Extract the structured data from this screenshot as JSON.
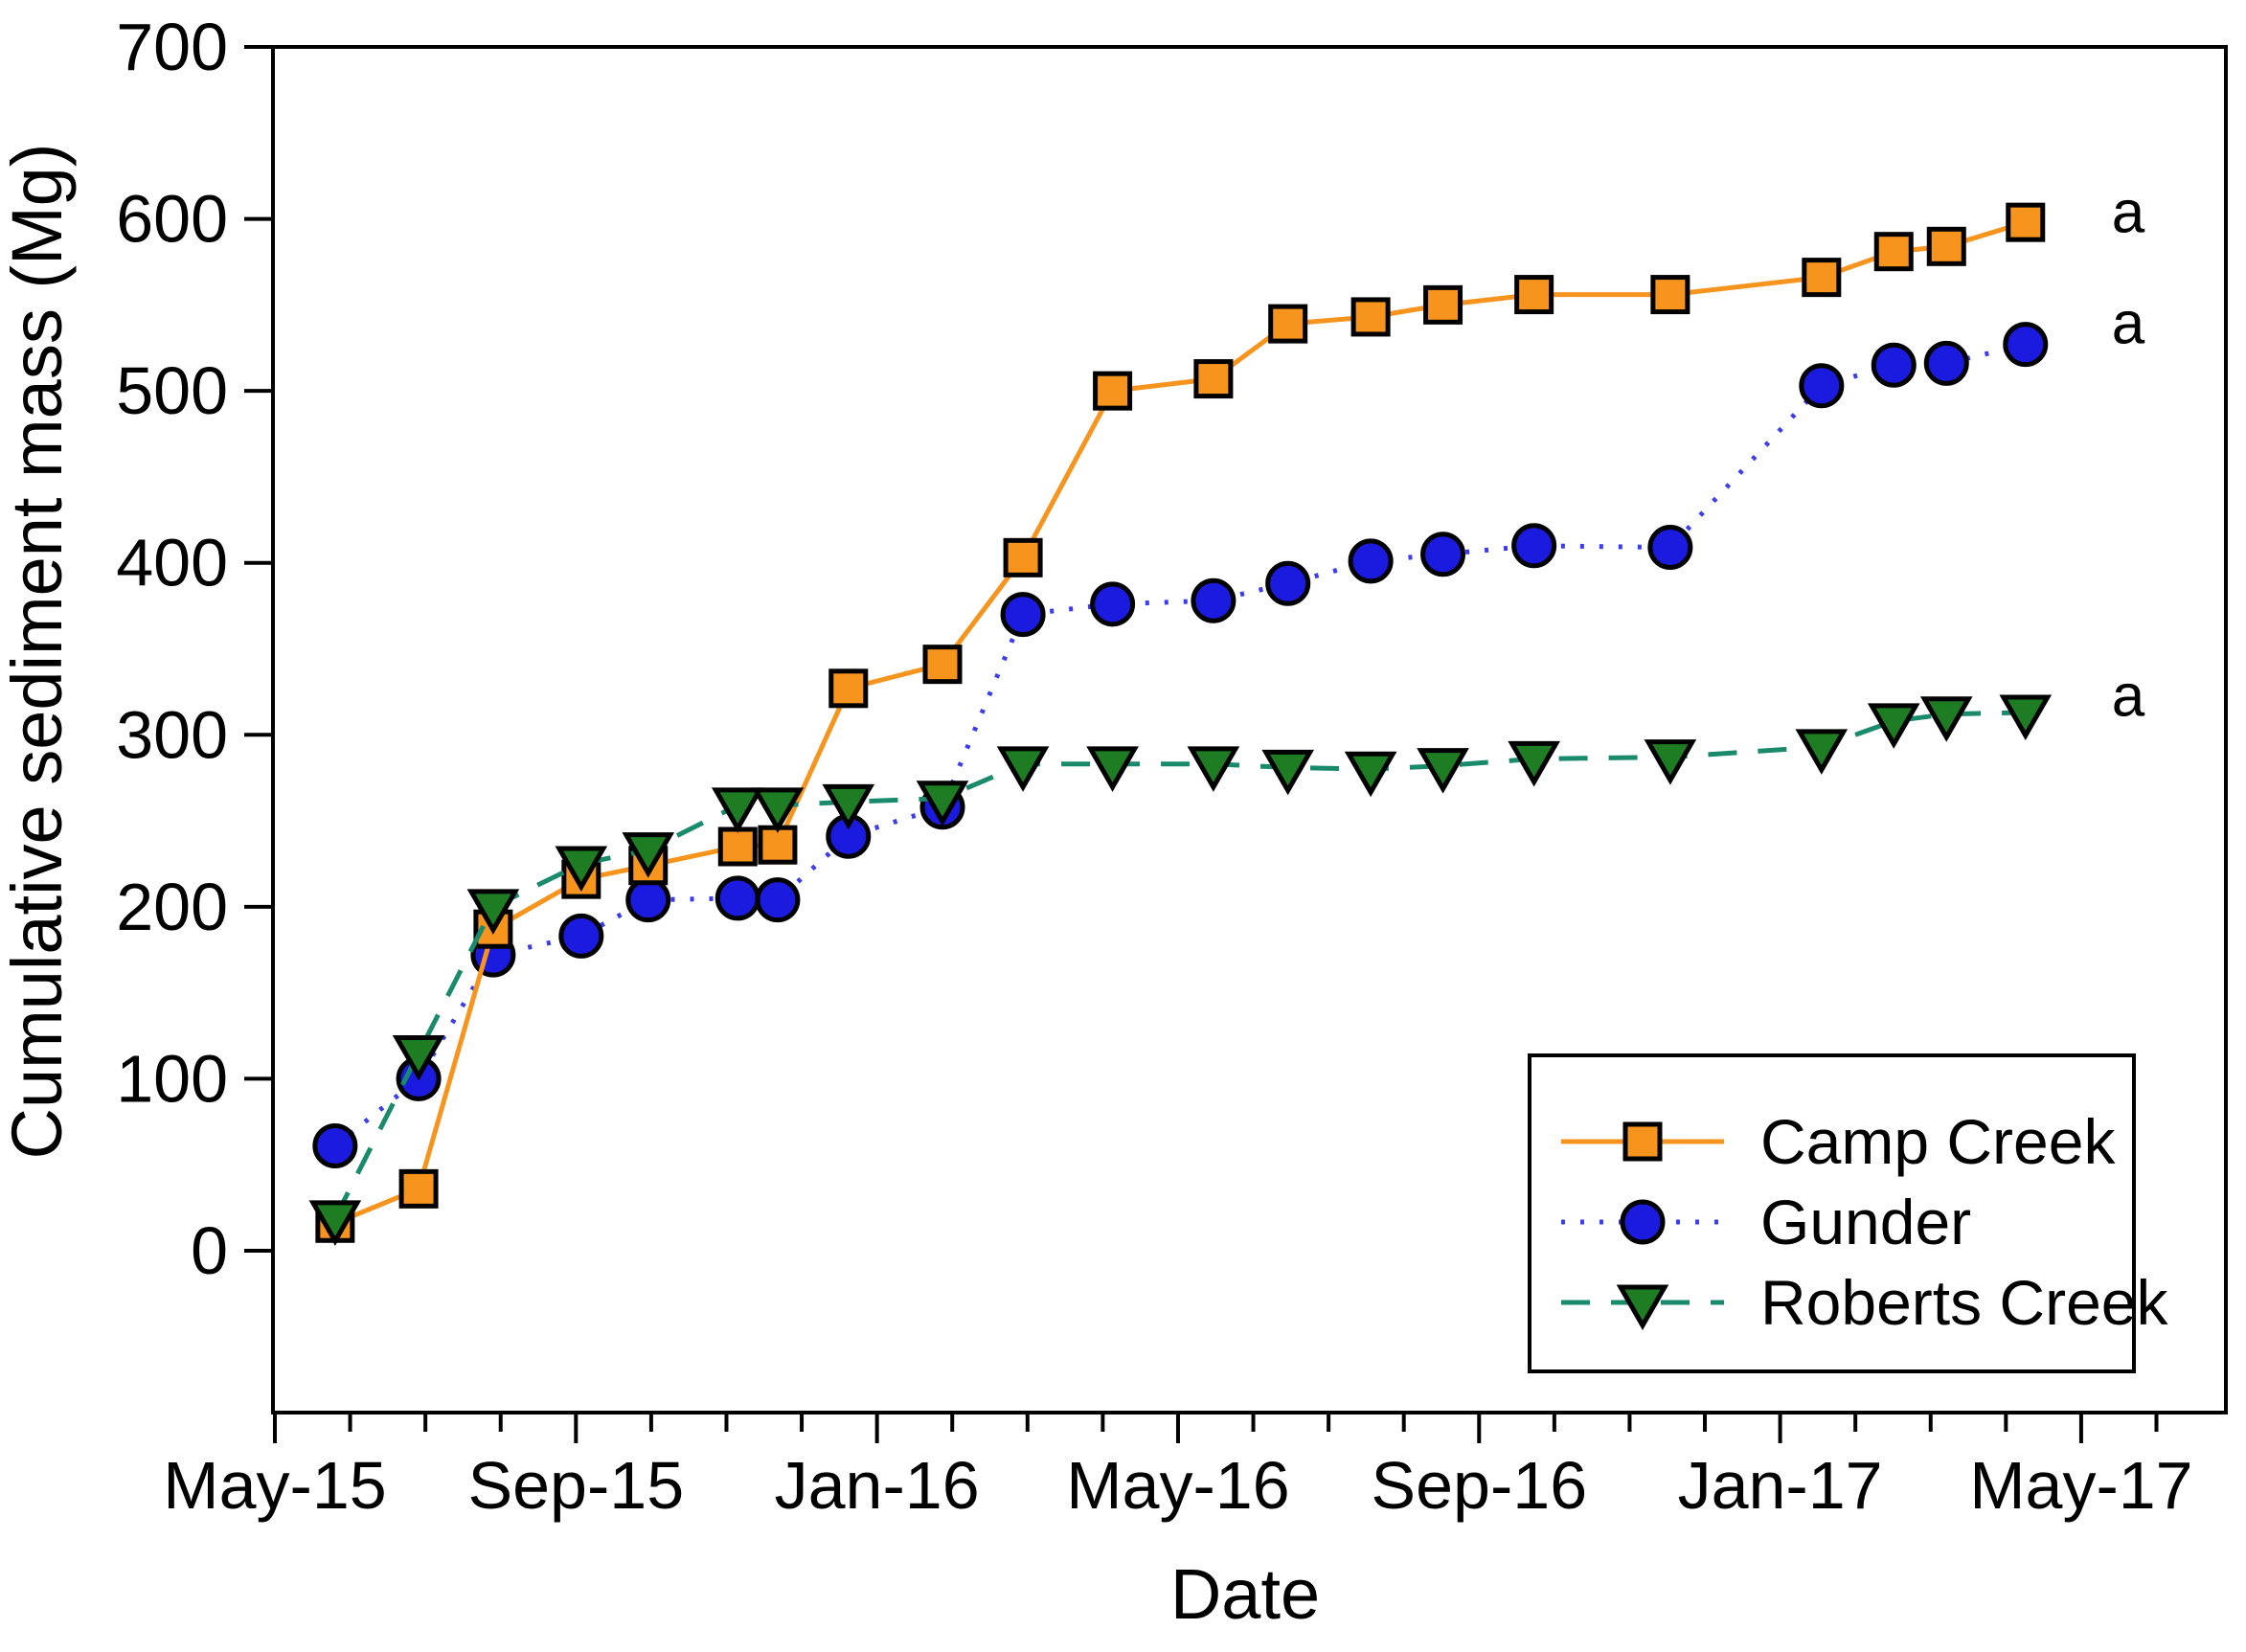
{
  "figure": {
    "background": "#ffffff",
    "frame_color": "#000000",
    "text_color": "#000000"
  },
  "chart_data": {
    "type": "line",
    "title": "",
    "xlabel": "Date",
    "ylabel": "Cumulative sediment mass (Mg)",
    "x_axis": {
      "unit": "months since May 2015",
      "major_tick_labels": [
        "May-15",
        "Sep-15",
        "Jan-16",
        "May-16",
        "Sep-16",
        "Jan-17",
        "May-17"
      ],
      "major_tick_months": [
        0,
        4,
        8,
        12,
        16,
        20,
        24
      ],
      "minor_tick_months": [
        1,
        2,
        3,
        5,
        6,
        7,
        9,
        10,
        11,
        13,
        14,
        15,
        17,
        18,
        19,
        21,
        22,
        23,
        25
      ],
      "xlim_months": [
        0,
        25.9
      ]
    },
    "y_axis": {
      "ticks": [
        0,
        100,
        200,
        300,
        400,
        500,
        600,
        700
      ],
      "ylim": [
        -94,
        700
      ]
    },
    "x_months": [
      0.8,
      1.91,
      2.9,
      4.07,
      4.96,
      6.15,
      6.68,
      7.62,
      8.87,
      9.94,
      11.13,
      12.47,
      13.46,
      14.56,
      15.52,
      16.73,
      18.54,
      20.55,
      21.51,
      22.21,
      23.26
    ],
    "series": [
      {
        "name": "Camp Creek",
        "marker": "square",
        "line_style": "solid",
        "line_color": "#F7941E",
        "marker_color": "#F7941E",
        "values": [
          16,
          36,
          187,
          216,
          224,
          235,
          236,
          327,
          341,
          403,
          500,
          507,
          539,
          543,
          550,
          556,
          556,
          566,
          581,
          584,
          598
        ]
      },
      {
        "name": "Gunder",
        "marker": "circle",
        "line_style": "dotted",
        "line_color": "#3B3BF0",
        "marker_color": "#1B1BE0",
        "values": [
          61,
          100,
          172,
          183,
          204,
          205,
          204,
          241,
          258,
          370,
          376,
          378,
          388,
          401,
          405,
          410,
          409,
          503,
          515,
          516,
          527
        ]
      },
      {
        "name": "Roberts Creek",
        "marker": "triangle-down",
        "line_style": "dashed",
        "line_color": "#1A8A6D",
        "marker_color": "#1E7D23",
        "values": [
          19,
          115,
          200,
          225,
          233,
          259,
          259,
          261,
          263,
          283,
          283,
          283,
          281,
          280,
          282,
          286,
          287,
          293,
          308,
          312,
          313
        ]
      }
    ],
    "legend": {
      "position": "lower-right",
      "entries": [
        "Camp Creek",
        "Gunder",
        "Roberts Creek"
      ]
    },
    "annotations": [
      {
        "text": "a",
        "series": "Camp Creek",
        "y_value": 604
      },
      {
        "text": "a",
        "series": "Gunder",
        "y_value": 539
      },
      {
        "text": "a",
        "series": "Roberts Creek",
        "y_value": 322
      }
    ]
  }
}
